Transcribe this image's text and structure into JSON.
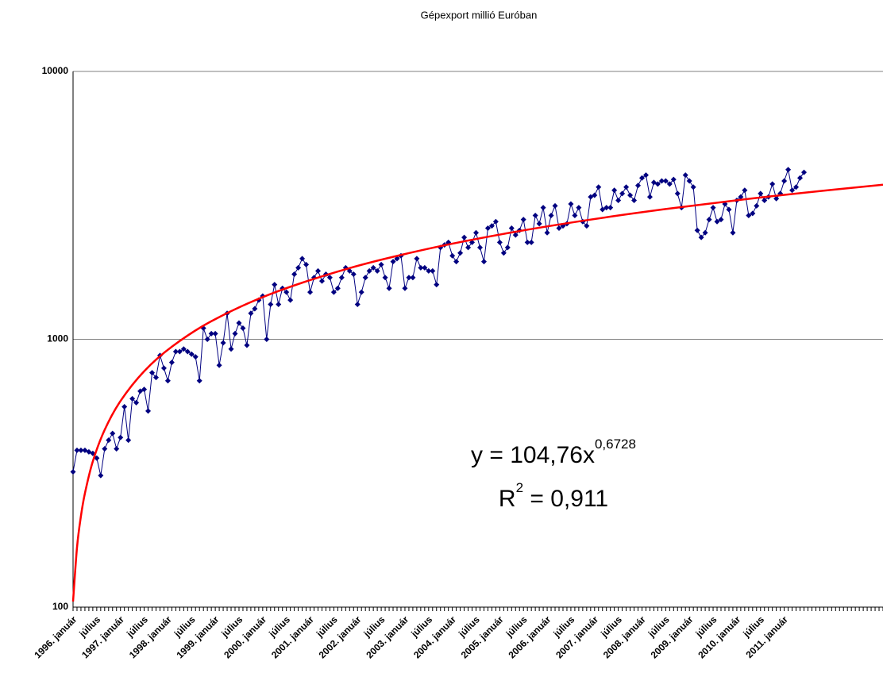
{
  "chart_data": {
    "type": "line",
    "title": "Gépexport millió Euróban",
    "log_scale": true,
    "grid": true,
    "ylim": [
      100,
      10000
    ],
    "yticks": [
      100,
      1000,
      10000
    ],
    "categories": [
      "1996. január",
      null,
      null,
      null,
      null,
      null,
      "július",
      null,
      null,
      null,
      null,
      null,
      "1997. január",
      null,
      null,
      null,
      null,
      null,
      "július",
      null,
      null,
      null,
      null,
      null,
      "1998. január",
      null,
      null,
      null,
      null,
      null,
      "július",
      null,
      null,
      null,
      null,
      null,
      "1999. január",
      null,
      null,
      null,
      null,
      null,
      "július",
      null,
      null,
      null,
      null,
      null,
      "2000. január",
      null,
      null,
      null,
      null,
      null,
      "július",
      null,
      null,
      null,
      null,
      null,
      "2001. január",
      null,
      null,
      null,
      null,
      null,
      "július",
      null,
      null,
      null,
      null,
      null,
      "2002. január",
      null,
      null,
      null,
      null,
      null,
      "július",
      null,
      null,
      null,
      null,
      null,
      "2003. január",
      null,
      null,
      null,
      null,
      null,
      "július",
      null,
      null,
      null,
      null,
      null,
      "2004. január",
      null,
      null,
      null,
      null,
      null,
      "július",
      null,
      null,
      null,
      null,
      null,
      "2005. január",
      null,
      null,
      null,
      null,
      null,
      "július",
      null,
      null,
      null,
      null,
      null,
      "2006. január",
      null,
      null,
      null,
      null,
      null,
      "július",
      null,
      null,
      null,
      null,
      null,
      "2007. január",
      null,
      null,
      null,
      null,
      null,
      "július",
      null,
      null,
      null,
      null,
      null,
      "2008. január",
      null,
      null,
      null,
      null,
      null,
      "július",
      null,
      null,
      null,
      null,
      null,
      "2009. január",
      null,
      null,
      null,
      null,
      null,
      "július",
      null,
      null,
      null,
      null,
      null,
      "2010. január",
      null,
      null,
      null,
      null,
      null,
      "július",
      null,
      null,
      null,
      null,
      null,
      "2011. január",
      null,
      null,
      null,
      null,
      null,
      null,
      null,
      null,
      null,
      null,
      null,
      null,
      null,
      null,
      null,
      null,
      null,
      null,
      null,
      null,
      null,
      null,
      null,
      null,
      null
    ],
    "series": [
      {
        "color": "#000080",
        "values": [
          320,
          385,
          385,
          385,
          380,
          375,
          360,
          310,
          390,
          420,
          445,
          390,
          430,
          560,
          420,
          600,
          580,
          640,
          650,
          540,
          750,
          720,
          870,
          780,
          700,
          820,
          900,
          900,
          920,
          900,
          880,
          860,
          700,
          1100,
          1000,
          1050,
          1050,
          800,
          970,
          1250,
          920,
          1050,
          1150,
          1100,
          950,
          1250,
          1300,
          1400,
          1450,
          1000,
          1350,
          1600,
          1350,
          1550,
          1500,
          1400,
          1750,
          1850,
          2000,
          1900,
          1500,
          1700,
          1800,
          1650,
          1750,
          1700,
          1500,
          1550,
          1700,
          1850,
          1800,
          1750,
          1350,
          1500,
          1700,
          1800,
          1850,
          1800,
          1900,
          1700,
          1550,
          1950,
          2000,
          2050,
          1550,
          1700,
          1700,
          2000,
          1850,
          1850,
          1800,
          1800,
          1600,
          2200,
          2250,
          2300,
          2050,
          1950,
          2100,
          2400,
          2200,
          2300,
          2500,
          2200,
          1950,
          2600,
          2650,
          2750,
          2300,
          2100,
          2200,
          2600,
          2450,
          2550,
          2800,
          2300,
          2300,
          2900,
          2700,
          3100,
          2500,
          2900,
          3150,
          2600,
          2650,
          2700,
          3200,
          2900,
          3100,
          2750,
          2650,
          3400,
          3450,
          3700,
          3050,
          3100,
          3100,
          3600,
          3300,
          3500,
          3700,
          3450,
          3300,
          3750,
          4000,
          4100,
          3400,
          3850,
          3800,
          3900,
          3900,
          3800,
          3950,
          3500,
          3100,
          4100,
          3900,
          3700,
          2550,
          2400,
          2500,
          2800,
          3100,
          2750,
          2800,
          3200,
          3050,
          2500,
          3300,
          3400,
          3600,
          2900,
          2950,
          3150,
          3500,
          3300,
          3400,
          3800,
          3350,
          3500,
          3900,
          4300,
          3600,
          3700,
          4000,
          4200,
          null,
          null,
          null,
          null,
          null,
          null,
          null,
          null,
          null,
          null,
          null,
          null,
          null,
          null,
          null,
          null,
          null,
          null,
          null,
          null
        ]
      },
      {
        "color": "#ff0000",
        "trend": true,
        "x": [
          0,
          1,
          2,
          3,
          5,
          8,
          12,
          18,
          25,
          35,
          50,
          70,
          90,
          110,
          130,
          150,
          170,
          190,
          205
        ],
        "values": [
          105,
          167,
          219,
          266,
          350,
          459,
          588,
          760,
          938,
          1168,
          1476,
          1844,
          2179,
          2490,
          2784,
          3063,
          3331,
          3588,
          3776
        ]
      }
    ],
    "annotations": [
      {
        "text": "y = 104,76x",
        "sup": "0,6728"
      },
      {
        "text": "R",
        "sup": "2",
        "rest": " = 0,911"
      }
    ]
  }
}
